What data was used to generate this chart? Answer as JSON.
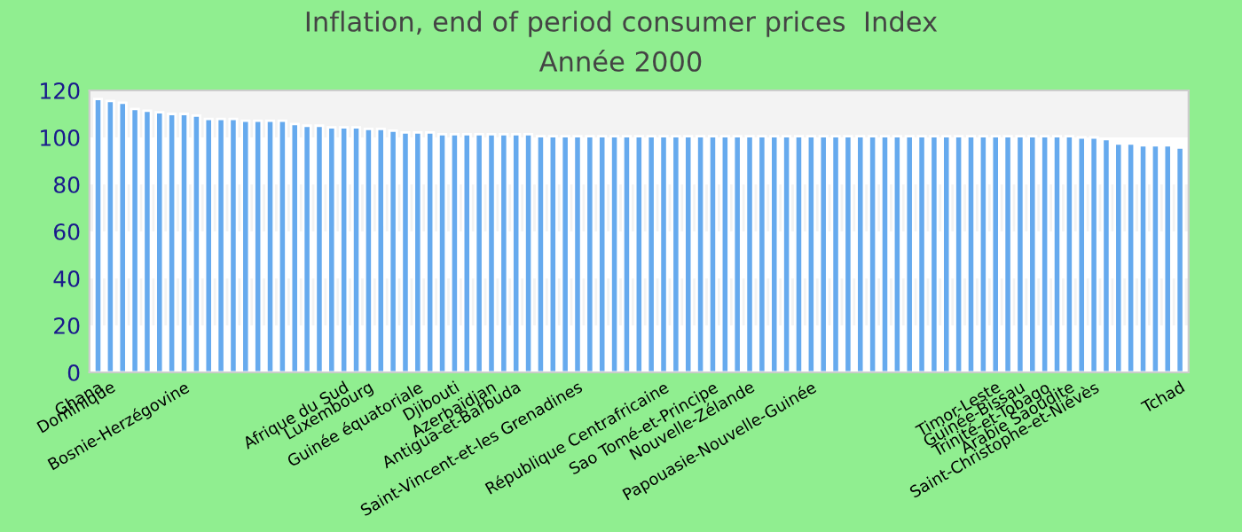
{
  "chart_data": {
    "type": "bar",
    "title": "Inflation, end of period consumer prices  Index",
    "subtitle": "Année 2000",
    "categories": [
      "Ghana",
      "Dominique",
      null,
      null,
      null,
      null,
      null,
      "Bosnie-Herzégovine",
      null,
      null,
      null,
      null,
      null,
      null,
      null,
      null,
      null,
      null,
      null,
      null,
      "Afrique du Sud",
      null,
      "Luxembourg",
      null,
      null,
      null,
      "Guinée équatoriale",
      null,
      null,
      "Djibouti",
      null,
      null,
      "Azerbaïdjan",
      null,
      "Antigua-et-Barbuda",
      null,
      null,
      null,
      null,
      "Saint-Vincent-et-les Grenadines",
      null,
      null,
      null,
      null,
      null,
      null,
      "République Centrafricaine",
      null,
      null,
      null,
      "Sao Tomé-et-Principe",
      null,
      null,
      "Nouvelle-Zélande",
      null,
      null,
      null,
      null,
      "Papouasie-Nouvelle-Guinée",
      null,
      null,
      null,
      null,
      null,
      null,
      null,
      null,
      null,
      null,
      null,
      null,
      null,
      null,
      "Timor-Leste",
      null,
      "Guinée-Bissau",
      null,
      "Trinité-et-Tobago",
      null,
      "Arabie Saoudite",
      null,
      "Saint-Christophe-et-Niévès",
      null,
      null,
      null,
      null,
      null,
      null,
      "Tchad"
    ],
    "values": [
      116.4,
      115.5,
      114.8,
      112.1,
      111.4,
      110.7,
      110,
      110,
      109.3,
      107.9,
      107.9,
      107.9,
      107.1,
      107.1,
      107.1,
      107.1,
      105.7,
      105,
      105,
      104.3,
      104.3,
      104.3,
      103.6,
      103.6,
      102.9,
      102.1,
      102.1,
      102.1,
      101.4,
      101.4,
      101.4,
      101.4,
      101.4,
      101.4,
      101.4,
      101.4,
      100.5,
      100.5,
      100.5,
      100.5,
      100.5,
      100.5,
      100.5,
      100.5,
      100.5,
      100.5,
      100.5,
      100.5,
      100.5,
      100.5,
      100.5,
      100.5,
      100.5,
      100.5,
      100.5,
      100.5,
      100.5,
      100.5,
      100.5,
      100.5,
      100.5,
      100.5,
      100.5,
      100.5,
      100.5,
      100.5,
      100.5,
      100.5,
      100.5,
      100.5,
      100.5,
      100.5,
      100.5,
      100.5,
      100.5,
      100.5,
      100.5,
      100.5,
      100.5,
      100.5,
      100,
      100,
      99.3,
      97.4,
      97.4,
      96.7,
      96.7,
      96.7,
      95.7
    ],
    "color": "#66aaee",
    "ylim": [
      0,
      120
    ],
    "yticks": [
      0,
      20,
      40,
      60,
      80,
      100,
      120
    ],
    "bands": [
      {
        "axis": "y",
        "from": 20,
        "to": 40,
        "color": "#f3f3f3"
      },
      {
        "axis": "y",
        "from": 60,
        "to": 80,
        "color": "#f3f3f3"
      },
      {
        "axis": "y",
        "from": 100,
        "to": 120,
        "color": "#f3f3f3"
      }
    ],
    "grid": false,
    "legend": false
  }
}
